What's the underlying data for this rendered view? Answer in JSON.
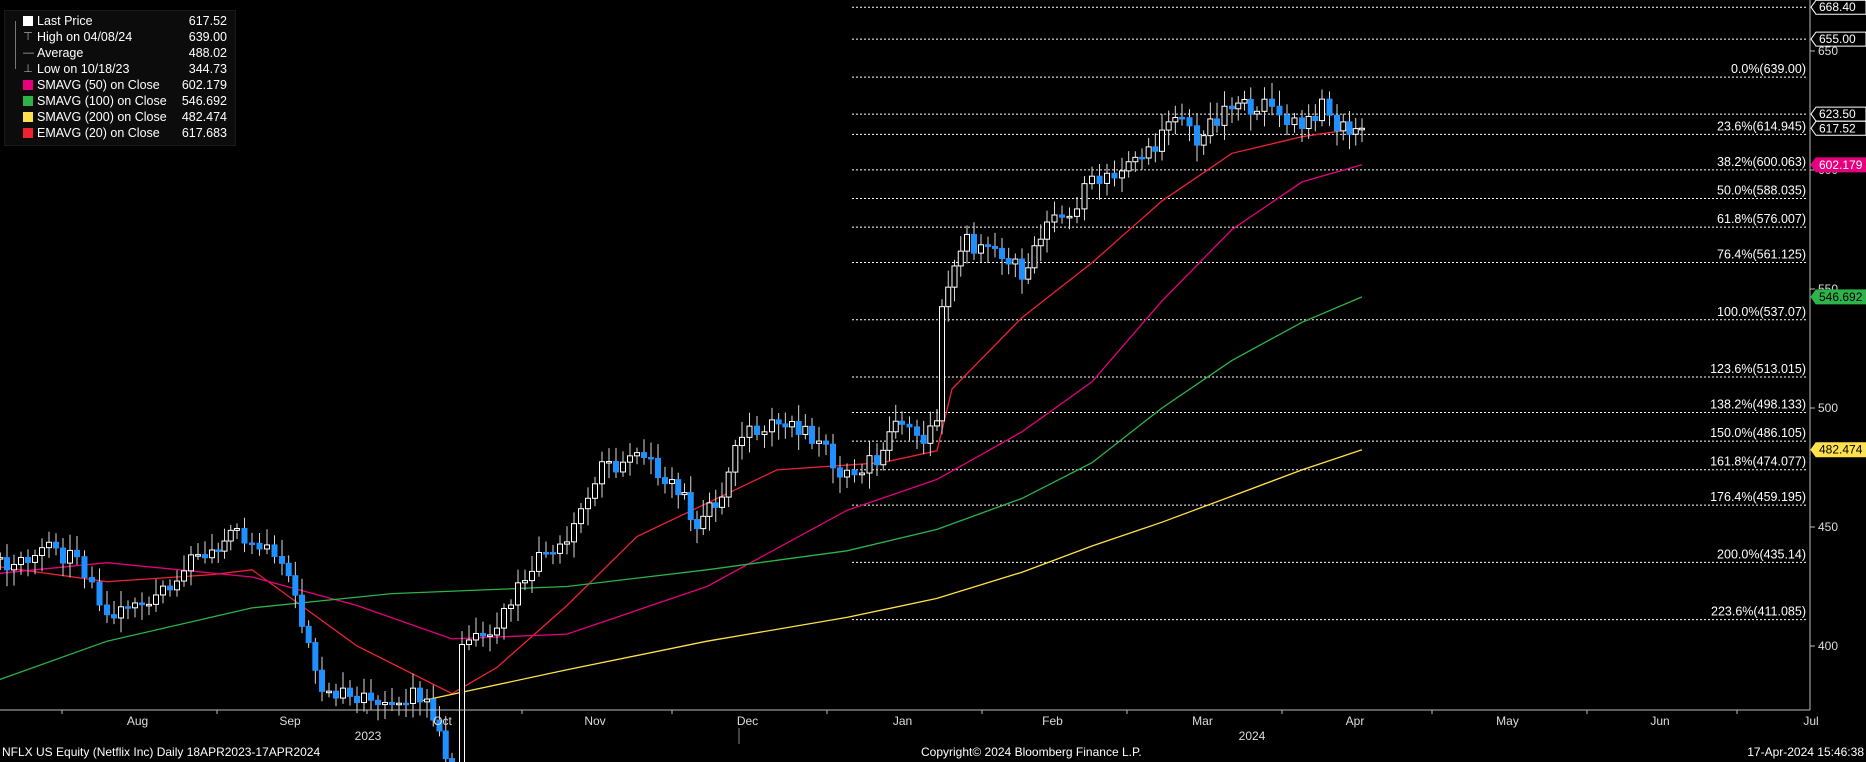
{
  "legend": {
    "items": [
      {
        "label": "Last Price",
        "value": "617.52",
        "swatch": "#ffffff",
        "kind": "box"
      },
      {
        "label": "High on 04/08/24",
        "value": "639.00",
        "kind": "high"
      },
      {
        "label": "Average",
        "value": "488.02",
        "kind": "avg"
      },
      {
        "label": "Low on 10/18/23",
        "value": "344.73",
        "kind": "low"
      },
      {
        "label": "SMAVG (50)  on Close",
        "value": "602.179",
        "swatch": "#e6007e",
        "kind": "box"
      },
      {
        "label": "SMAVG (100)  on Close",
        "value": "546.692",
        "swatch": "#2db34a",
        "kind": "box"
      },
      {
        "label": "SMAVG (200)  on Close",
        "value": "482.474",
        "swatch": "#ffe14d",
        "kind": "box"
      },
      {
        "label": "EMAVG (20)  on Close",
        "value": "617.683",
        "swatch": "#ee2233",
        "kind": "box"
      }
    ]
  },
  "footer": {
    "left": "NFLX US Equity (Netflix Inc)  Daily 18APR2023-17APR2024",
    "center": "Copyright© 2024 Bloomberg Finance L.P.",
    "right": "17-Apr-2024 15:46:38"
  },
  "colors": {
    "up_candle": "#ffffff",
    "down_candle": "#1e90ff",
    "sma50": "#e6007e",
    "sma100": "#2db34a",
    "sma200": "#ffe14d",
    "ema20": "#ee2233",
    "fib_line": "#ffffff"
  },
  "chart_data": {
    "type": "candlestick",
    "y_axis_ticks": [
      400,
      450,
      500,
      550,
      600,
      650
    ],
    "ylim": [
      372,
      676
    ],
    "x_month_labels": [
      "Aug",
      "Sep",
      "Oct",
      "Nov",
      "Dec",
      "Jan",
      "Feb",
      "Mar",
      "Apr",
      "May",
      "Jun",
      "Jul"
    ],
    "x_year_labels": [
      "2023",
      "2024"
    ],
    "price_markers": [
      {
        "value": "668.40",
        "style": "white-outline"
      },
      {
        "value": "655.00",
        "style": "white-outline"
      },
      {
        "value": "623.50",
        "style": "white-outline"
      },
      {
        "value": "617.52",
        "style": "white-outline"
      },
      {
        "value": "602.179",
        "style": "magenta"
      },
      {
        "value": "546.692",
        "style": "green"
      },
      {
        "value": "482.474",
        "style": "yellow"
      }
    ],
    "fib_levels": [
      {
        "label": "0.0%(639.00)",
        "value": 639.0
      },
      {
        "label": "23.6%(614.945)",
        "value": 614.945
      },
      {
        "label": "38.2%(600.063)",
        "value": 600.063
      },
      {
        "label": "50.0%(588.035)",
        "value": 588.035
      },
      {
        "label": "61.8%(576.007)",
        "value": 576.007
      },
      {
        "label": "76.4%(561.125)",
        "value": 561.125
      },
      {
        "label": "100.0%(537.07)",
        "value": 537.07
      },
      {
        "label": "123.6%(513.015)",
        "value": 513.015
      },
      {
        "label": "138.2%(498.133)",
        "value": 498.133
      },
      {
        "label": "150.0%(486.105)",
        "value": 486.105
      },
      {
        "label": "161.8%(474.077)",
        "value": 474.077
      },
      {
        "label": "176.4%(459.195)",
        "value": 459.195
      },
      {
        "label": "200.0%(435.14)",
        "value": 435.14
      },
      {
        "label": "223.6%(411.085)",
        "value": 411.085
      }
    ],
    "extra_levels": [
      668.4,
      655.0,
      623.5
    ],
    "candle_anchors": [
      [
        "2023-07-17",
        444
      ],
      [
        "2023-07-21",
        433
      ],
      [
        "2023-07-28",
        441
      ],
      [
        "2023-08-04",
        435
      ],
      [
        "2023-08-10",
        412
      ],
      [
        "2023-08-17",
        418
      ],
      [
        "2023-08-24",
        430
      ],
      [
        "2023-08-31",
        441
      ],
      [
        "2023-09-05",
        446
      ],
      [
        "2023-09-08",
        441
      ],
      [
        "2023-09-14",
        437
      ],
      [
        "2023-09-18",
        410
      ],
      [
        "2023-09-22",
        384
      ],
      [
        "2023-09-29",
        377
      ],
      [
        "2023-10-06",
        378
      ],
      [
        "2023-10-13",
        381
      ],
      [
        "2023-10-18",
        346
      ],
      [
        "2023-10-20",
        402
      ],
      [
        "2023-10-27",
        410
      ],
      [
        "2023-11-03",
        435
      ],
      [
        "2023-11-10",
        447
      ],
      [
        "2023-11-17",
        474
      ],
      [
        "2023-11-24",
        479
      ],
      [
        "2023-12-01",
        470
      ],
      [
        "2023-12-06",
        452
      ],
      [
        "2023-12-11",
        462
      ],
      [
        "2023-12-15",
        490
      ],
      [
        "2023-12-21",
        495
      ],
      [
        "2023-12-29",
        487
      ],
      [
        "2024-01-05",
        472
      ],
      [
        "2024-01-11",
        478
      ],
      [
        "2024-01-16",
        497
      ],
      [
        "2024-01-19",
        486
      ],
      [
        "2024-01-23",
        492
      ],
      [
        "2024-01-24",
        545
      ],
      [
        "2024-01-29",
        570
      ],
      [
        "2024-02-05",
        562
      ],
      [
        "2024-02-09",
        558
      ],
      [
        "2024-02-14",
        575
      ],
      [
        "2024-02-20",
        585
      ],
      [
        "2024-02-23",
        597
      ],
      [
        "2024-02-29",
        600
      ],
      [
        "2024-03-04",
        605
      ],
      [
        "2024-03-08",
        615
      ],
      [
        "2024-03-12",
        622
      ],
      [
        "2024-03-15",
        613
      ],
      [
        "2024-03-19",
        620
      ],
      [
        "2024-03-22",
        626
      ],
      [
        "2024-03-27",
        628
      ],
      [
        "2024-04-02",
        622
      ],
      [
        "2024-04-05",
        620
      ],
      [
        "2024-04-09",
        626
      ],
      [
        "2024-04-12",
        618
      ],
      [
        "2024-04-17",
        617.52
      ]
    ],
    "moving_averages": {
      "ema20": [
        [
          "2023-07-17",
          434
        ],
        [
          "2023-08-10",
          427
        ],
        [
          "2023-08-31",
          430
        ],
        [
          "2023-09-08",
          432
        ],
        [
          "2023-09-29",
          400
        ],
        [
          "2023-10-18",
          380
        ],
        [
          "2023-10-27",
          391
        ],
        [
          "2023-11-10",
          417
        ],
        [
          "2023-11-24",
          446
        ],
        [
          "2023-12-08",
          460
        ],
        [
          "2023-12-22",
          474
        ],
        [
          "2024-01-12",
          477
        ],
        [
          "2024-01-23",
          482
        ],
        [
          "2024-01-26",
          508
        ],
        [
          "2024-02-09",
          538
        ],
        [
          "2024-02-23",
          561
        ],
        [
          "2024-03-08",
          587
        ],
        [
          "2024-03-22",
          607
        ],
        [
          "2024-04-05",
          614
        ],
        [
          "2024-04-17",
          617.683
        ]
      ],
      "sma50": [
        [
          "2023-07-17",
          430
        ],
        [
          "2023-08-10",
          435
        ],
        [
          "2023-09-08",
          429
        ],
        [
          "2023-09-29",
          417
        ],
        [
          "2023-10-18",
          403
        ],
        [
          "2023-11-10",
          405
        ],
        [
          "2023-12-08",
          425
        ],
        [
          "2024-01-05",
          457
        ],
        [
          "2024-01-23",
          470
        ],
        [
          "2024-02-09",
          490
        ],
        [
          "2024-02-23",
          511
        ],
        [
          "2024-03-08",
          545
        ],
        [
          "2024-03-22",
          575
        ],
        [
          "2024-04-05",
          595
        ],
        [
          "2024-04-17",
          602.179
        ]
      ],
      "sma100": [
        [
          "2023-07-17",
          384
        ],
        [
          "2023-08-10",
          402
        ],
        [
          "2023-09-08",
          416
        ],
        [
          "2023-10-06",
          422
        ],
        [
          "2023-11-10",
          425
        ],
        [
          "2023-12-08",
          432
        ],
        [
          "2024-01-05",
          440
        ],
        [
          "2024-01-23",
          449
        ],
        [
          "2024-02-09",
          462
        ],
        [
          "2024-02-23",
          477
        ],
        [
          "2024-03-08",
          500
        ],
        [
          "2024-03-22",
          520
        ],
        [
          "2024-04-05",
          536
        ],
        [
          "2024-04-17",
          546.692
        ]
      ],
      "sma200": [
        [
          "2023-10-12",
          377
        ],
        [
          "2023-11-10",
          390
        ],
        [
          "2023-12-08",
          402
        ],
        [
          "2024-01-05",
          412
        ],
        [
          "2024-01-23",
          420
        ],
        [
          "2024-02-09",
          431
        ],
        [
          "2024-02-23",
          442
        ],
        [
          "2024-03-08",
          452
        ],
        [
          "2024-03-22",
          463
        ],
        [
          "2024-04-05",
          474
        ],
        [
          "2024-04-17",
          482.474
        ]
      ]
    }
  }
}
